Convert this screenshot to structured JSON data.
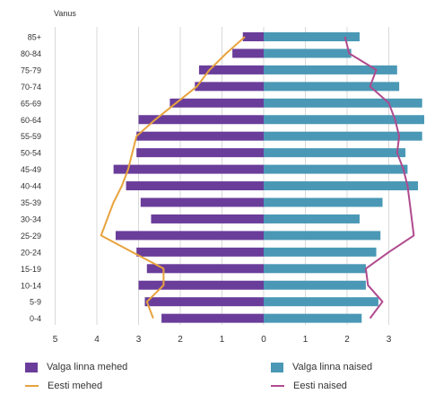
{
  "chart_data": {
    "type": "bar",
    "orientation": "horizontal",
    "subtype": "population-pyramid",
    "ylabel": "Vanus",
    "categories": [
      "85+",
      "80-84",
      "75-79",
      "70-74",
      "65-69",
      "60-64",
      "55-59",
      "50-54",
      "45-49",
      "40-44",
      "35-39",
      "30-34",
      "25-29",
      "20-24",
      "15-19",
      "10-14",
      "5-9",
      "0-4"
    ],
    "x_ticks": [
      "5",
      "4",
      "3",
      "2",
      "1",
      "0",
      "1",
      "2",
      "3"
    ],
    "xlim": [
      -5,
      3.9
    ],
    "grid": true,
    "legend_position": "bottom",
    "series": [
      {
        "name": "Valga linna mehed",
        "kind": "bar",
        "side": "left",
        "color": "#6a3d9a",
        "values": [
          0.5,
          0.75,
          1.55,
          1.65,
          2.25,
          3.0,
          3.05,
          3.05,
          3.6,
          3.3,
          2.95,
          2.7,
          3.55,
          3.05,
          2.8,
          3.0,
          2.85,
          2.45
        ]
      },
      {
        "name": "Valga linna naised",
        "kind": "bar",
        "side": "right",
        "color": "#4a98b5",
        "values": [
          2.3,
          2.1,
          3.2,
          3.25,
          3.8,
          3.85,
          3.8,
          3.4,
          3.45,
          3.7,
          2.85,
          2.3,
          2.8,
          2.7,
          2.45,
          2.45,
          2.75,
          2.35
        ]
      },
      {
        "name": "Eesti mehed",
        "kind": "line",
        "side": "left",
        "color": "#e8a33d",
        "values": [
          0.45,
          0.9,
          1.3,
          1.6,
          2.1,
          2.6,
          3.05,
          3.15,
          3.25,
          3.4,
          3.6,
          3.75,
          3.9,
          3.15,
          2.4,
          2.4,
          2.8,
          2.65
        ]
      },
      {
        "name": "Eesti naised",
        "kind": "line",
        "side": "right",
        "color": "#b04a8e",
        "values": [
          1.95,
          2.05,
          2.7,
          2.55,
          3.0,
          3.15,
          3.25,
          3.2,
          3.35,
          3.45,
          3.5,
          3.55,
          3.6,
          3.0,
          2.45,
          2.5,
          2.85,
          2.55
        ]
      }
    ]
  },
  "legend": {
    "men_bar": "Valga linna mehed",
    "women_bar": "Valga linna naised",
    "men_line": "Eesti mehed",
    "women_line": "Eesti naised"
  }
}
